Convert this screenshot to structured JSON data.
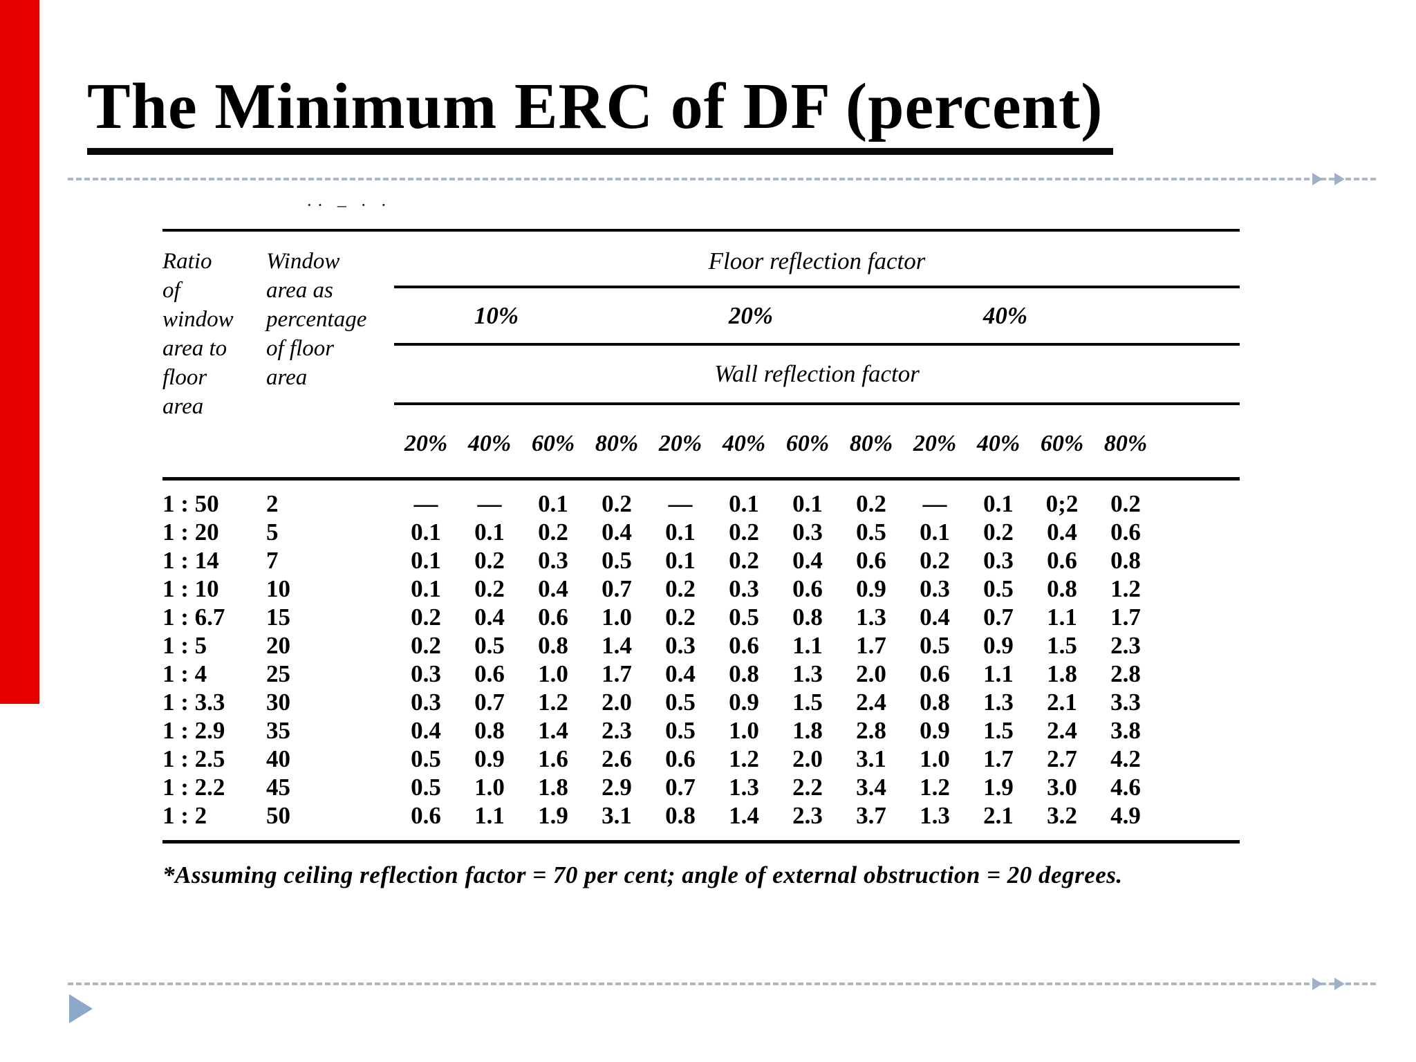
{
  "slide": {
    "title": "The Minimum ERC of DF (percent)",
    "accent_bar_color": "#e60000",
    "dashed_line_color": "#a9b7c7",
    "bullet_color": "#8da9c9"
  },
  "table": {
    "scan_artifact": "·· – · ·",
    "col1_header_lines": [
      "Ratio",
      "of",
      "window",
      "area to",
      "floor",
      "area"
    ],
    "col2_header_lines": [
      "Window",
      "area as",
      "percentage",
      "of floor",
      "area"
    ],
    "floor_header": "Floor reflection factor",
    "floor_groups": [
      "10%",
      "20%",
      "40%"
    ],
    "wall_header": "Wall reflection factor",
    "wall_cols": [
      "20%",
      "40%",
      "60%",
      "80%",
      "20%",
      "40%",
      "60%",
      "80%",
      "20%",
      "40%",
      "60%",
      "80%"
    ],
    "rows": [
      {
        "ratio": "1 : 50",
        "window_pct": "2",
        "values": [
          "—",
          "—",
          "0.1",
          "0.2",
          "—",
          "0.1",
          "0.1",
          "0.2",
          "—",
          "0.1",
          "0;2",
          "0.2"
        ]
      },
      {
        "ratio": "1 : 20",
        "window_pct": "5",
        "values": [
          "0.1",
          "0.1",
          "0.2",
          "0.4",
          "0.1",
          "0.2",
          "0.3",
          "0.5",
          "0.1",
          "0.2",
          "0.4",
          "0.6"
        ]
      },
      {
        "ratio": "1 : 14",
        "window_pct": "7",
        "values": [
          "0.1",
          "0.2",
          "0.3",
          "0.5",
          "0.1",
          "0.2",
          "0.4",
          "0.6",
          "0.2",
          "0.3",
          "0.6",
          "0.8"
        ]
      },
      {
        "ratio": "1 : 10",
        "window_pct": "10",
        "values": [
          "0.1",
          "0.2",
          "0.4",
          "0.7",
          "0.2",
          "0.3",
          "0.6",
          "0.9",
          "0.3",
          "0.5",
          "0.8",
          "1.2"
        ]
      },
      {
        "ratio": "1 : 6.7",
        "window_pct": "15",
        "values": [
          "0.2",
          "0.4",
          "0.6",
          "1.0",
          "0.2",
          "0.5",
          "0.8",
          "1.3",
          "0.4",
          "0.7",
          "1.1",
          "1.7"
        ]
      },
      {
        "ratio": "1 : 5",
        "window_pct": "20",
        "values": [
          "0.2",
          "0.5",
          "0.8",
          "1.4",
          "0.3",
          "0.6",
          "1.1",
          "1.7",
          "0.5",
          "0.9",
          "1.5",
          "2.3"
        ]
      },
      {
        "ratio": "1 : 4",
        "window_pct": "25",
        "values": [
          "0.3",
          "0.6",
          "1.0",
          "1.7",
          "0.4",
          "0.8",
          "1.3",
          "2.0",
          "0.6",
          "1.1",
          "1.8",
          "2.8"
        ]
      },
      {
        "ratio": "1 : 3.3",
        "window_pct": "30",
        "values": [
          "0.3",
          "0.7",
          "1.2",
          "2.0",
          "0.5",
          "0.9",
          "1.5",
          "2.4",
          "0.8",
          "1.3",
          "2.1",
          "3.3"
        ]
      },
      {
        "ratio": "1 : 2.9",
        "window_pct": "35",
        "values": [
          "0.4",
          "0.8",
          "1.4",
          "2.3",
          "0.5",
          "1.0",
          "1.8",
          "2.8",
          "0.9",
          "1.5",
          "2.4",
          "3.8"
        ]
      },
      {
        "ratio": "1 : 2.5",
        "window_pct": "40",
        "values": [
          "0.5",
          "0.9",
          "1.6",
          "2.6",
          "0.6",
          "1.2",
          "2.0",
          "3.1",
          "1.0",
          "1.7",
          "2.7",
          "4.2"
        ]
      },
      {
        "ratio": "1 : 2.2",
        "window_pct": "45",
        "values": [
          "0.5",
          "1.0",
          "1.8",
          "2.9",
          "0.7",
          "1.3",
          "2.2",
          "3.4",
          "1.2",
          "1.9",
          "3.0",
          "4.6"
        ]
      },
      {
        "ratio": "1 : 2",
        "window_pct": "50",
        "values": [
          "0.6",
          "1.1",
          "1.9",
          "3.1",
          "0.8",
          "1.4",
          "2.3",
          "3.7",
          "1.3",
          "2.1",
          "3.2",
          "4.9"
        ]
      }
    ],
    "footnote": "*Assuming ceiling reflection factor = 70 per cent; angle of external obstruction = 20 degrees."
  }
}
